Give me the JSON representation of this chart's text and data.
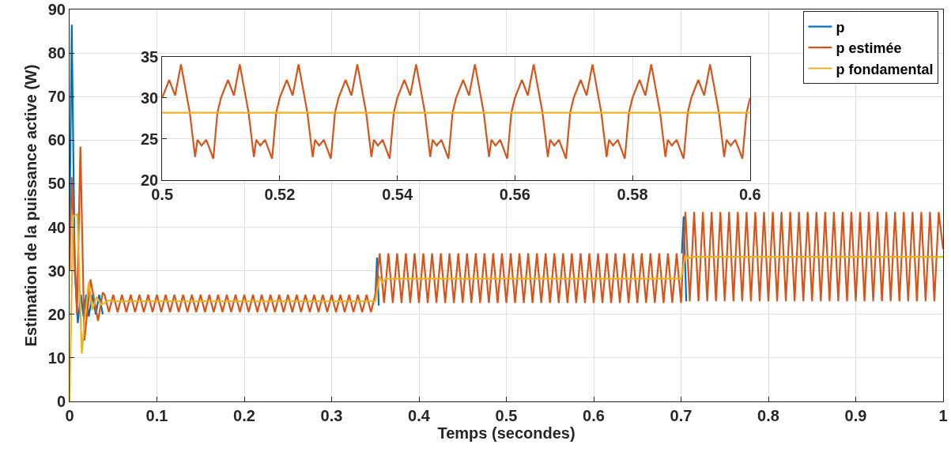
{
  "chart_data": [
    {
      "type": "line",
      "xlabel": "Temps (secondes)",
      "ylabel": "Estimation de la puissance active (W)",
      "xlim": [
        0,
        1
      ],
      "xticks": [
        0,
        0.1,
        0.2,
        0.3,
        0.4,
        0.5,
        0.6,
        0.7,
        0.8,
        0.9,
        1
      ],
      "ylim": [
        0,
        90
      ],
      "yticks": [
        0,
        10,
        20,
        30,
        40,
        50,
        60,
        70,
        80,
        90
      ],
      "grid": true,
      "legend": "top right",
      "series": [
        {
          "name": "p",
          "color": "#0072bd",
          "x": [
            0,
            0.0025,
            0.006,
            0.0094,
            0.013,
            0.016,
            0.019,
            0.022,
            0.026,
            0.03,
            0.034,
            0.038,
            0.039,
            0.35,
            0.352,
            0.354,
            0.355,
            0.701,
            0.703,
            0.706
          ],
          "values": [
            40,
            86.5,
            30,
            18,
            24.5,
            19.5,
            24.5,
            19.5,
            24.5,
            20,
            24.5,
            20,
            null,
            24,
            33,
            22,
            null,
            34,
            42.5,
            23
          ]
        },
        {
          "name": "p estimée",
          "color": "#d95319",
          "x": [
            0,
            0.0024,
            0.0085,
            0.0124,
            0.017,
            0.024,
            0.0326,
            0.038,
            0.04,
            0.045,
            0.05,
            0.055,
            0.06,
            0.065,
            0.07,
            0.075,
            0.08,
            0.085,
            0.09,
            0.095,
            0.1,
            0.105,
            0.11,
            0.115,
            0.12,
            0.125,
            0.13,
            0.135,
            0.14,
            0.145,
            0.15,
            0.155,
            0.16,
            0.165,
            0.17,
            0.175,
            0.18,
            0.185,
            0.19,
            0.195,
            0.2,
            0.205,
            0.21,
            0.215,
            0.22,
            0.225,
            0.23,
            0.235,
            0.24,
            0.245,
            0.25,
            0.255,
            0.26,
            0.265,
            0.27,
            0.275,
            0.28,
            0.285,
            0.29,
            0.295,
            0.3,
            0.305,
            0.31,
            0.315,
            0.32,
            0.325,
            0.33,
            0.335,
            0.34,
            0.345,
            0.35,
            0.355,
            0.36,
            0.365,
            0.37,
            0.375,
            0.38,
            0.385,
            0.39,
            0.395,
            0.4,
            0.405,
            0.41,
            0.415,
            0.42,
            0.425,
            0.43,
            0.435,
            0.44,
            0.445,
            0.45,
            0.455,
            0.46,
            0.465,
            0.47,
            0.475,
            0.48,
            0.485,
            0.49,
            0.495,
            0.5,
            0.505,
            0.51,
            0.515,
            0.52,
            0.525,
            0.53,
            0.535,
            0.54,
            0.545,
            0.55,
            0.555,
            0.56,
            0.565,
            0.57,
            0.575,
            0.58,
            0.585,
            0.59,
            0.595,
            0.6,
            0.605,
            0.61,
            0.615,
            0.62,
            0.625,
            0.63,
            0.635,
            0.64,
            0.645,
            0.65,
            0.655,
            0.66,
            0.665,
            0.67,
            0.675,
            0.68,
            0.685,
            0.69,
            0.695,
            0.7,
            0.705,
            0.71,
            0.715,
            0.72,
            0.725,
            0.73,
            0.735,
            0.74,
            0.745,
            0.75,
            0.755,
            0.76,
            0.765,
            0.77,
            0.775,
            0.78,
            0.785,
            0.79,
            0.795,
            0.8,
            0.805,
            0.81,
            0.815,
            0.82,
            0.825,
            0.83,
            0.835,
            0.84,
            0.845,
            0.85,
            0.855,
            0.86,
            0.865,
            0.87,
            0.875,
            0.88,
            0.885,
            0.89,
            0.895,
            0.9,
            0.905,
            0.91,
            0.915,
            0.92,
            0.925,
            0.93,
            0.935,
            0.94,
            0.945,
            0.95,
            0.955,
            0.96,
            0.965,
            0.97,
            0.975,
            0.98,
            0.985,
            0.99,
            0.995,
            1
          ],
          "values": [
            30,
            51.5,
            20,
            58.5,
            14,
            28,
            18.5,
            25,
            24.5,
            20.5,
            24.5,
            20.5,
            24.5,
            20.5,
            24.5,
            20.5,
            24.5,
            20.5,
            24.5,
            20.5,
            24.5,
            20.5,
            24.5,
            20.5,
            24.5,
            20.5,
            24.5,
            20.5,
            24.5,
            20.5,
            24.5,
            20.5,
            24.5,
            20.5,
            24.5,
            20.5,
            24.5,
            20.5,
            24.5,
            20.5,
            24.5,
            20.5,
            24.5,
            20.5,
            24.5,
            20.5,
            24.5,
            20.5,
            24.5,
            20.5,
            24.5,
            20.5,
            24.5,
            20.5,
            24.5,
            20.5,
            24.5,
            20.5,
            24.5,
            20.5,
            24.5,
            20.5,
            24.5,
            20.5,
            24.5,
            20.5,
            24.5,
            20.5,
            24.5,
            20.5,
            24.5,
            34,
            22.6,
            34,
            22.6,
            34,
            22.6,
            34,
            22.6,
            34,
            22.6,
            34,
            22.6,
            34,
            22.6,
            34,
            22.6,
            34,
            22.6,
            34,
            22.6,
            34,
            22.6,
            34,
            22.6,
            34,
            22.6,
            34,
            22.6,
            34,
            22.6,
            34,
            22.6,
            34,
            22.6,
            34,
            22.6,
            34,
            22.6,
            34,
            22.6,
            34,
            22.6,
            34,
            22.6,
            34,
            22.6,
            34,
            22.6,
            34,
            22.6,
            34,
            22.6,
            34,
            22.6,
            34,
            22.6,
            34,
            22.6,
            34,
            22.6,
            34,
            22.6,
            34,
            22.6,
            34,
            22.6,
            34,
            22.6,
            34,
            22.6,
            43.5,
            23,
            43.5,
            23,
            43.5,
            23,
            43.5,
            23,
            43.5,
            23,
            43.5,
            23,
            43.5,
            23,
            43.5,
            23,
            43.5,
            23,
            43.5,
            23,
            43.5,
            23,
            43.5,
            23,
            43.5,
            23,
            43.5,
            23,
            43.5,
            23,
            43.5,
            23,
            43.5,
            23,
            43.5,
            23,
            43.5,
            23,
            43.5,
            23,
            43.5,
            23,
            43.5,
            23,
            43.5,
            23,
            43.5,
            23,
            43.5,
            23,
            43.5,
            23,
            43.5,
            23,
            43.5,
            23,
            43.5,
            23,
            43.5,
            35
          ]
        },
        {
          "name": "p fondamental",
          "color": "#edb120",
          "x": [
            0,
            0.004,
            0.009,
            0.011,
            0.014,
            0.018,
            0.022,
            0.026,
            0.031,
            0.036,
            0.045,
            0.05,
            0.35,
            0.355,
            0.358,
            0.362,
            0.7,
            0.705,
            0.708,
            0.712,
            1
          ],
          "values": [
            0,
            42.5,
            43,
            30,
            11,
            20,
            27.5,
            21,
            24,
            22.2,
            23.2,
            23,
            23,
            28.8,
            27.2,
            28.2,
            28.2,
            33.6,
            32.8,
            33.2,
            33.2
          ]
        }
      ]
    },
    {
      "type": "line",
      "xlim": [
        0.5,
        0.6
      ],
      "xticks": [
        0.5,
        0.52,
        0.54,
        0.56,
        0.58,
        0.6
      ],
      "ylim": [
        20,
        35
      ],
      "yticks": [
        20,
        25,
        30,
        35
      ],
      "grid": true,
      "series": [
        {
          "color": "#d95319",
          "x": [
            0.5,
            0.5012,
            0.5022,
            0.5032,
            0.5047,
            0.5056,
            0.506,
            0.5067,
            0.5075,
            0.5087,
            0.5094,
            0.51,
            0.5112,
            0.5122,
            0.5132,
            0.5147,
            0.5156,
            0.516,
            0.5167,
            0.5175,
            0.5187,
            0.5194,
            0.52,
            0.5212,
            0.5222,
            0.5232,
            0.5247,
            0.5256,
            0.526,
            0.5267,
            0.5275,
            0.5287,
            0.5294,
            0.53,
            0.5312,
            0.5322,
            0.5332,
            0.5347,
            0.5356,
            0.536,
            0.5367,
            0.5375,
            0.5387,
            0.5394,
            0.54,
            0.5412,
            0.5422,
            0.5432,
            0.5447,
            0.5456,
            0.546,
            0.5467,
            0.5475,
            0.5487,
            0.5494,
            0.55,
            0.5512,
            0.5522,
            0.5532,
            0.5547,
            0.5556,
            0.556,
            0.5567,
            0.5575,
            0.5587,
            0.5594,
            0.56,
            0.5612,
            0.5622,
            0.5632,
            0.5647,
            0.5656,
            0.566,
            0.5667,
            0.5675,
            0.5687,
            0.5694,
            0.57,
            0.5712,
            0.5722,
            0.5732,
            0.5747,
            0.5756,
            0.576,
            0.5767,
            0.5775,
            0.5787,
            0.5794,
            0.58,
            0.5812,
            0.5822,
            0.5832,
            0.5847,
            0.5856,
            0.586,
            0.5867,
            0.5875,
            0.5887,
            0.5894,
            0.59,
            0.5912,
            0.5922,
            0.5932,
            0.5947,
            0.5956,
            0.596,
            0.5967,
            0.5975,
            0.5987,
            0.5994,
            0.6
          ],
          "values": [
            30,
            32.2,
            30.3,
            34.1,
            28.2,
            22.8,
            24.9,
            24.2,
            24.9,
            22.6,
            28.2,
            30,
            32.2,
            30.3,
            34.1,
            28.2,
            22.8,
            24.9,
            24.2,
            24.9,
            22.6,
            28.2,
            30,
            32.2,
            30.3,
            34.1,
            28.2,
            22.8,
            24.9,
            24.2,
            24.9,
            22.6,
            28.2,
            30,
            32.2,
            30.3,
            34.1,
            28.2,
            22.8,
            24.9,
            24.2,
            24.9,
            22.6,
            28.2,
            30,
            32.2,
            30.3,
            34.1,
            28.2,
            22.8,
            24.9,
            24.2,
            24.9,
            22.6,
            28.2,
            30,
            32.2,
            30.3,
            34.1,
            28.2,
            22.8,
            24.9,
            24.2,
            24.9,
            22.6,
            28.2,
            30,
            32.2,
            30.3,
            34.1,
            28.2,
            22.8,
            24.9,
            24.2,
            24.9,
            22.6,
            28.2,
            30,
            32.2,
            30.3,
            34.1,
            28.2,
            22.8,
            24.9,
            24.2,
            24.9,
            22.6,
            28.2,
            30,
            32.2,
            30.3,
            34.1,
            28.2,
            22.8,
            24.9,
            24.2,
            24.9,
            22.6,
            28.2,
            30,
            32.2,
            30.3,
            34.1,
            28.2,
            22.8,
            24.9,
            24.2,
            24.9,
            22.6,
            28.2,
            30
          ]
        },
        {
          "color": "#edb120",
          "x": [
            0.5,
            0.6
          ],
          "values": [
            28.2,
            28.2
          ]
        }
      ]
    }
  ]
}
